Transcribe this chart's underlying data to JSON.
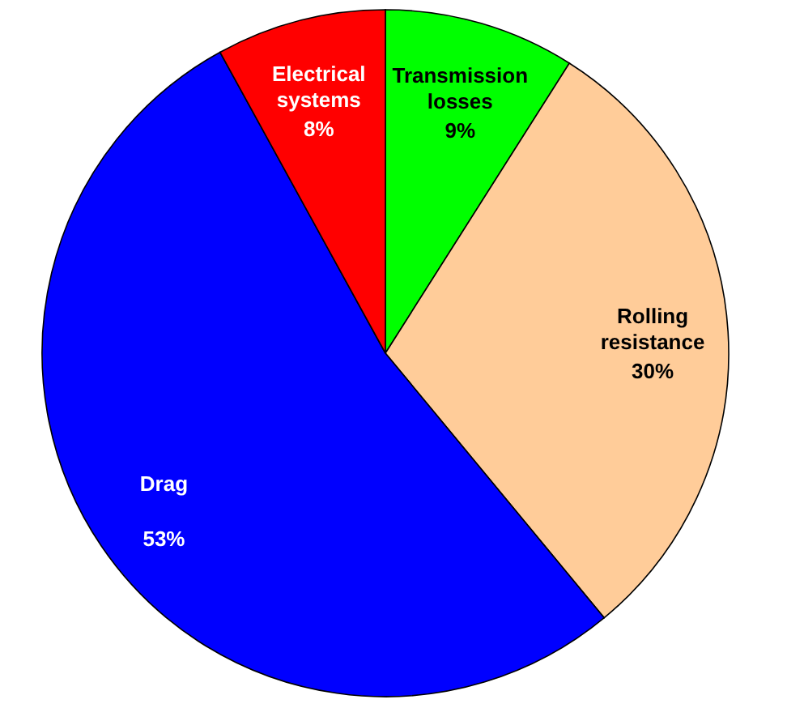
{
  "chart_data": {
    "type": "pie",
    "categories": [
      "Transmission losses",
      "Rolling resistance",
      "Drag",
      "Electrical systems"
    ],
    "values": [
      9,
      30,
      53,
      8
    ],
    "colors": [
      "#00ff00",
      "#ffcc99",
      "#0000ff",
      "#ff0000"
    ],
    "value_labels": [
      "9%",
      "30%",
      "53%",
      "8%"
    ],
    "legend": false
  }
}
